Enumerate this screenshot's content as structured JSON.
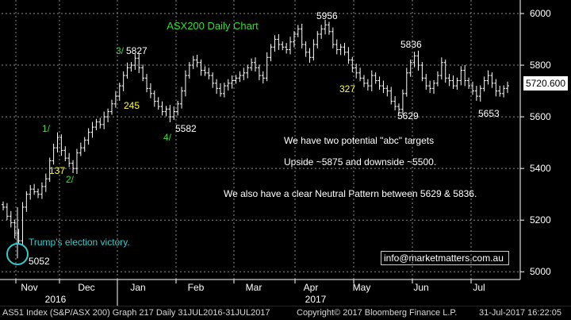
{
  "chart_data": {
    "type": "ohlc",
    "title": "ASX200 Daily Chart",
    "current_price": "5720.600",
    "ylim": [
      4970,
      6040
    ],
    "y_ticks": [
      "6000",
      "5800",
      "5600",
      "5400",
      "5200",
      "5000"
    ],
    "x_months": [
      "Nov",
      "Dec",
      "Jan",
      "Feb",
      "Mar",
      "Apr",
      "May",
      "Jun",
      "Jul"
    ],
    "x_years": [
      "2016",
      "2017"
    ],
    "series_closes": [
      5250,
      5215,
      5190,
      5150,
      5120,
      5250,
      5300,
      5320,
      5310,
      5300,
      5330,
      5360,
      5430,
      5480,
      5520,
      5470,
      5440,
      5420,
      5400,
      5460,
      5480,
      5510,
      5540,
      5560,
      5580,
      5570,
      5600,
      5620,
      5650,
      5680,
      5720,
      5760,
      5790,
      5800,
      5827,
      5790,
      5750,
      5710,
      5690,
      5660,
      5640,
      5620,
      5630,
      5600,
      5620,
      5650,
      5700,
      5760,
      5800,
      5820,
      5810,
      5780,
      5770,
      5760,
      5730,
      5710,
      5690,
      5720,
      5730,
      5740,
      5750,
      5760,
      5770,
      5790,
      5810,
      5790,
      5760,
      5750,
      5830,
      5870,
      5900,
      5880,
      5870,
      5860,
      5890,
      5920,
      5940,
      5880,
      5850,
      5830,
      5880,
      5920,
      5940,
      5956,
      5930,
      5880,
      5860,
      5870,
      5850,
      5820,
      5790,
      5770,
      5750,
      5730,
      5720,
      5760,
      5740,
      5720,
      5710,
      5700,
      5660,
      5640,
      5629,
      5690,
      5770,
      5810,
      5836,
      5800,
      5750,
      5720,
      5710,
      5730,
      5760,
      5810,
      5750,
      5740,
      5720,
      5740,
      5780,
      5740,
      5720,
      5700,
      5680,
      5710,
      5740,
      5760,
      5730,
      5700,
      5690,
      5710,
      5720
    ],
    "annotations": [
      {
        "text": "3/",
        "color": "#33dd33"
      },
      {
        "text": "5827",
        "color": "#ffffff"
      },
      {
        "text": "5956",
        "color": "#ffffff"
      },
      {
        "text": "5836",
        "color": "#ffffff"
      },
      {
        "text": "245",
        "color": "#ffff33"
      },
      {
        "text": "327",
        "color": "#ffff33"
      },
      {
        "text": "5582",
        "color": "#ffffff"
      },
      {
        "text": "4/",
        "color": "#33dd33"
      },
      {
        "text": "5629",
        "color": "#ffffff"
      },
      {
        "text": "5653",
        "color": "#ffffff"
      },
      {
        "text": "1/",
        "color": "#33dd33"
      },
      {
        "text": "137",
        "color": "#ffff33"
      },
      {
        "text": "2/",
        "color": "#33dd33"
      },
      {
        "text": "5052",
        "color": "#ffffff"
      },
      {
        "text": "Trump's election victory.",
        "color": "#33cccc"
      }
    ],
    "notes": [
      "We have two potential \"abc\" targets",
      "Upside ~5875 and downside ~5500.",
      "We also have a clear Neutral Pattern between 5629 & 5836."
    ]
  },
  "email": "info@marketmatters.com.au",
  "footer": {
    "left": "AS51 Index (S&P/ASX 200) Graph 217  Daily 31JUL2016-31JUL2017",
    "middle": "Copyright© 2017 Bloomberg Finance L.P.",
    "right": "31-Jul-2017 16:22:05"
  },
  "colors": {
    "background": "#000000",
    "bars": "#ffffff",
    "grid": "#8a8a8a",
    "title": "#33dd33",
    "wave_label": "#33dd33",
    "count_label": "#ffff33",
    "event": "#33cccc"
  }
}
